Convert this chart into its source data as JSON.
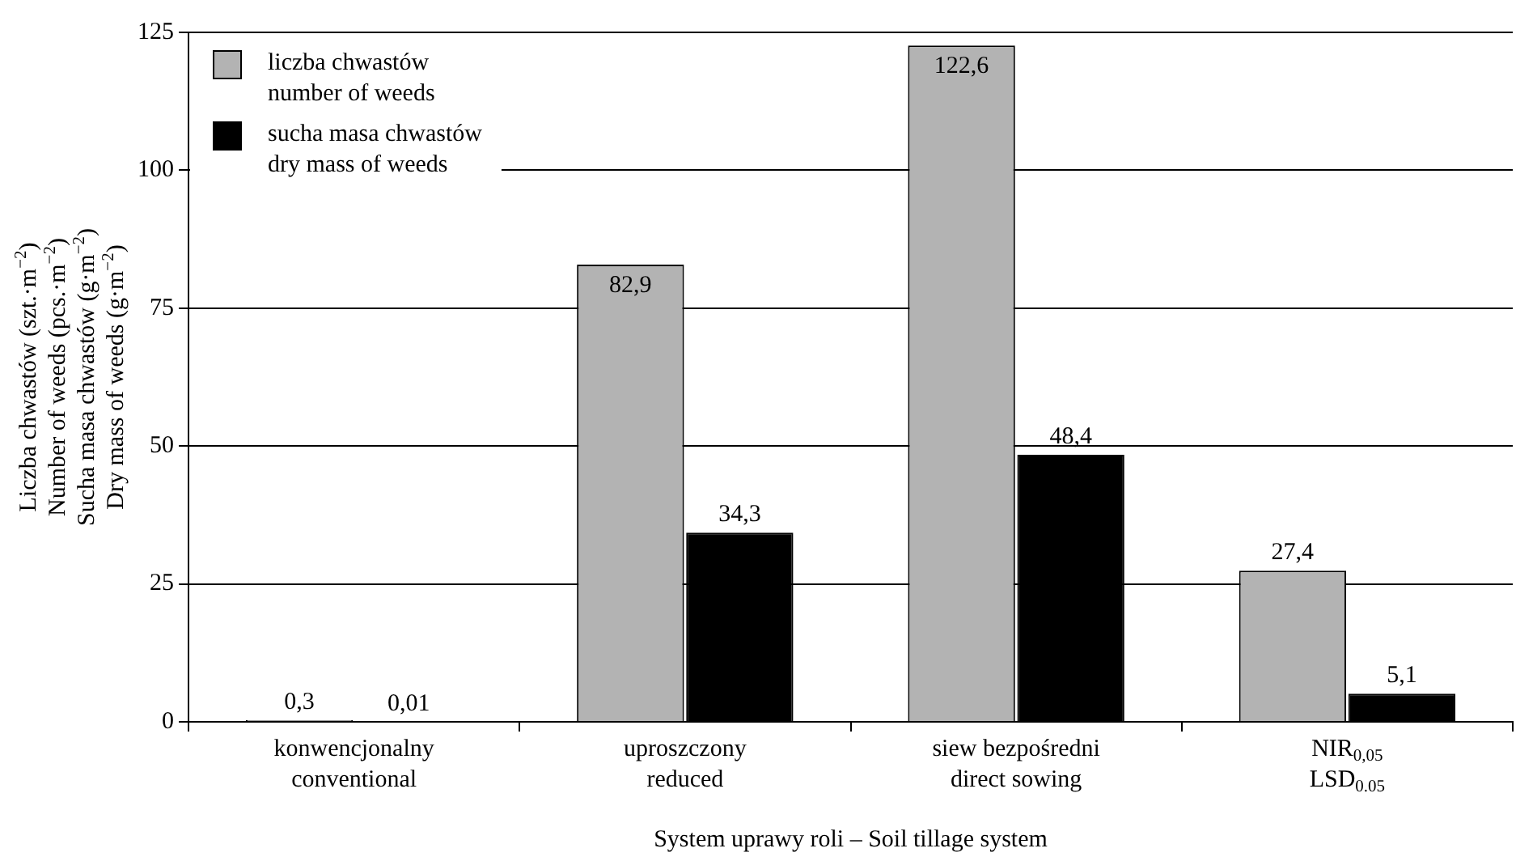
{
  "chart_data": {
    "type": "bar",
    "categories": [
      "konwencjonalny\nconventional",
      "uproszczony\nreduced",
      "siew bezpośredni\ndirect sowing",
      "NIR$_{0,05}$\nLSD$_{0.05}$"
    ],
    "series": [
      {
        "name": "liczba chwastów\nnumber of weeds",
        "color": "#b3b3b3",
        "values": [
          0.3,
          82.9,
          122.6,
          27.4
        ],
        "value_labels": [
          "0,3",
          "82,9",
          "122,6",
          "27,4"
        ]
      },
      {
        "name": "sucha masa chwastów\ndry mass of weeds",
        "color": "#000000",
        "values": [
          0.01,
          34.3,
          48.4,
          5.1
        ],
        "value_labels": [
          "0,01",
          "34,3",
          "48,4",
          "5,1"
        ]
      }
    ],
    "xlabel": "System uprawy roli – Soil tillage system",
    "ylabel": "Liczba chwastów (szt.·m$^{−2}$)\nNumber of weeds (pcs.·m$^{−2}$)\nSucha masa chwastów (g·m$^{−2}$)\nDry mass of weeds (g·m$^{−2}$)",
    "ylim": [
      0,
      125
    ],
    "yticks": [
      0,
      25,
      50,
      75,
      100,
      125
    ],
    "grid": "y",
    "legend": "top left"
  }
}
